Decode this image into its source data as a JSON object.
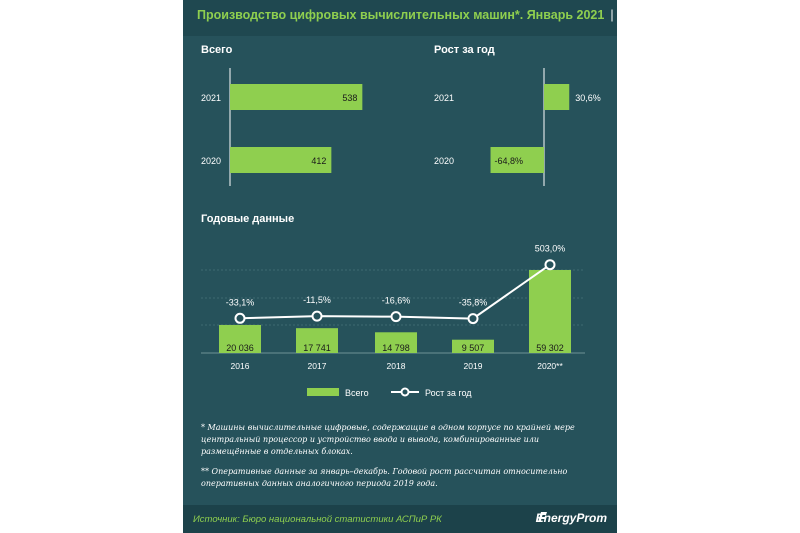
{
  "header": {
    "title": "Производство цифровых вычислительных машин*. Январь 2021",
    "unit": "| штук"
  },
  "chart_data": [
    {
      "type": "bar",
      "orientation": "horizontal",
      "title": "Всего",
      "categories": [
        "2021",
        "2020"
      ],
      "values": [
        538,
        412
      ],
      "labels": [
        "538",
        "412"
      ],
      "color": "#8fcf4f"
    },
    {
      "type": "bar",
      "orientation": "horizontal",
      "title": "Рост за год",
      "categories": [
        "2021",
        "2020"
      ],
      "values": [
        30.6,
        -64.8
      ],
      "labels": [
        "30,6%",
        "-64,8%"
      ],
      "color": "#8fcf4f"
    },
    {
      "type": "bar+line",
      "title": "Годовые данные",
      "categories": [
        "2016",
        "2017",
        "2018",
        "2019",
        "2020**"
      ],
      "series": [
        {
          "name": "Всего",
          "type": "bar",
          "values": [
            20036,
            17741,
            14798,
            9507,
            59302
          ],
          "labels": [
            "20 036",
            "17 741",
            "14 798",
            "9 507",
            "59 302"
          ],
          "color": "#8fcf4f"
        },
        {
          "name": "Рост за год",
          "type": "line",
          "values": [
            -33.1,
            -11.5,
            -16.6,
            -35.8,
            503.0
          ],
          "labels": [
            "-33,1%",
            "-11,5%",
            "-16,6%",
            "-35,8%",
            "503,0%"
          ],
          "color": "#ffffff"
        }
      ],
      "legend": "bottom",
      "grid": true
    }
  ],
  "footnotes": [
    "* Машины вычислительные цифровые, содержащие в одном корпусе по крайней мере центральный процессор и устройство ввода и вывода, комбинированные или размещённые в отдельных блоках.",
    "** Оперативные данные за январь–декабрь. Годовой рост рассчитан относительно оперативных данных аналогичного периода 2019 года."
  ],
  "footer": {
    "source": "Источник: Бюро национальной  статистики АСПиР РК",
    "brand": "EnergyProm"
  },
  "colors": {
    "background": "#26525b",
    "accent": "#8fcf4f",
    "text": "#ffffff"
  }
}
